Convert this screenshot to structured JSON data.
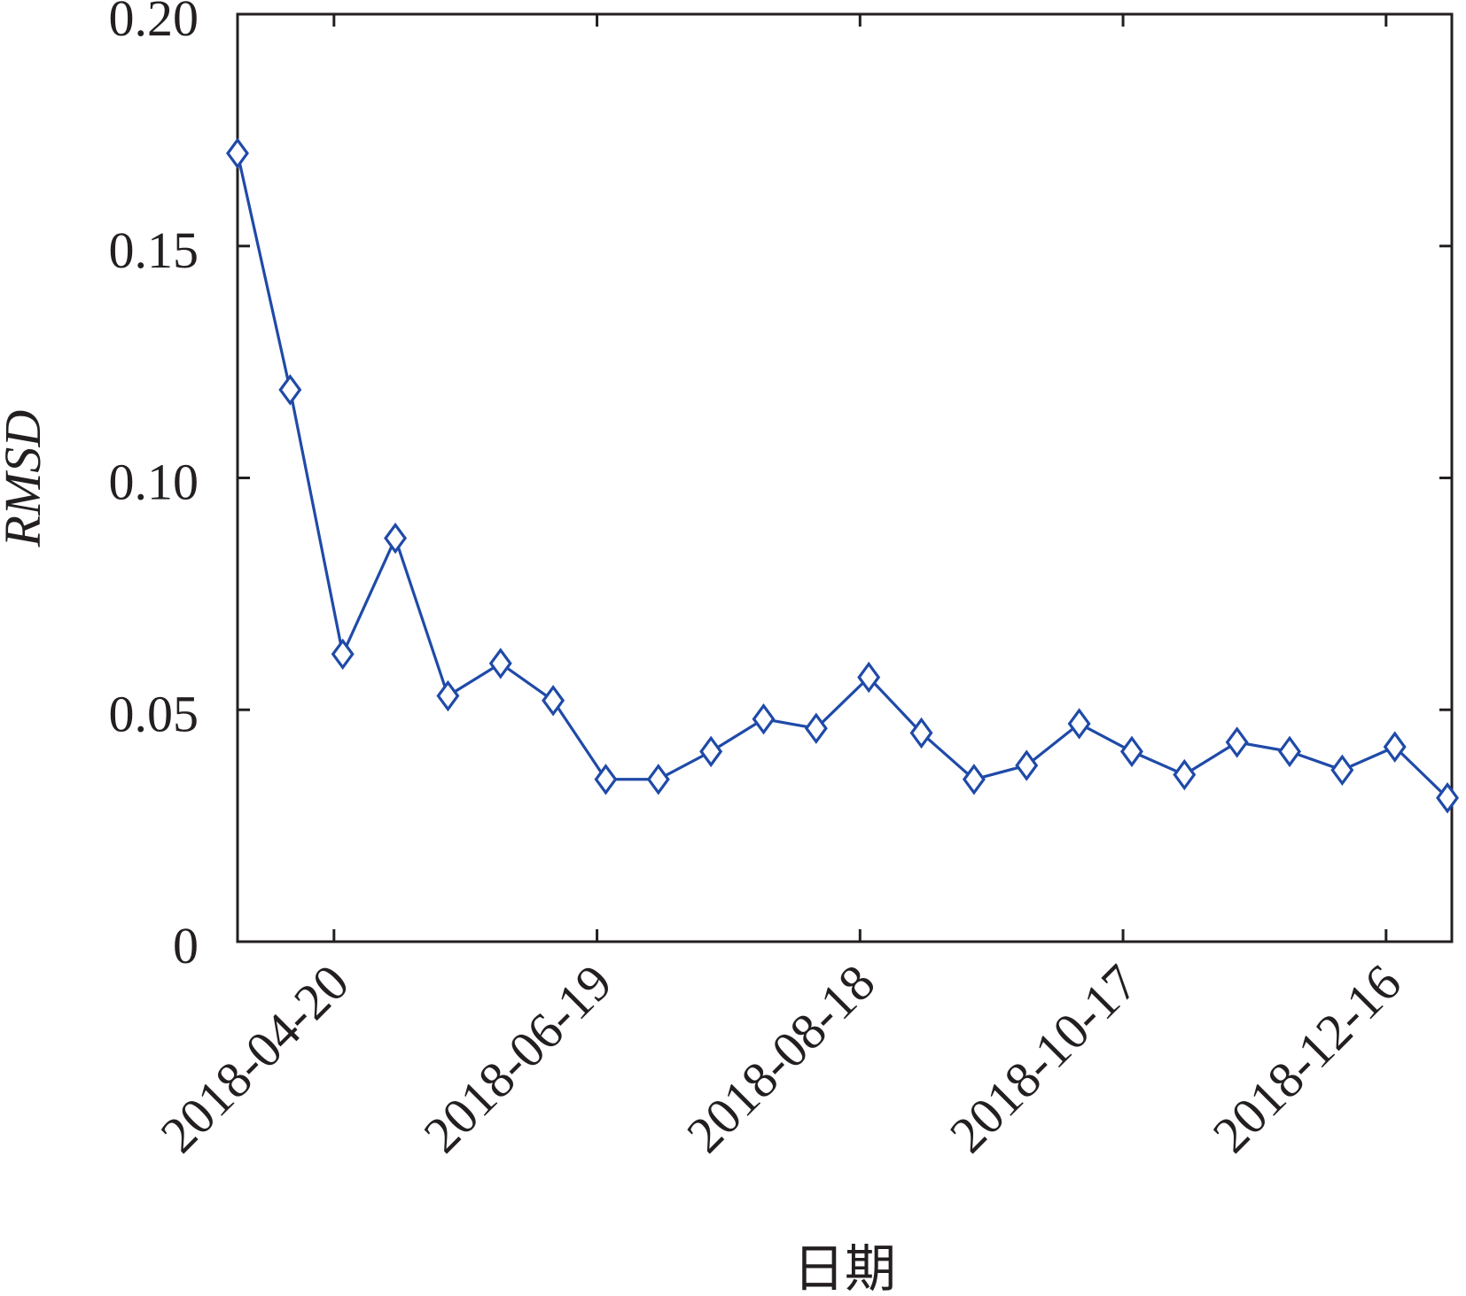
{
  "chart_data": {
    "type": "line",
    "title": "",
    "xlabel": "日期",
    "ylabel": "RMSD",
    "ylim": [
      0,
      0.2
    ],
    "xlim": [
      "2018-03-29",
      "2018-12-31"
    ],
    "yticks": [
      0,
      0.05,
      0.1,
      0.15,
      0.2
    ],
    "ytick_labels": [
      "0",
      "0.05",
      "0.10",
      "0.15",
      "0.20"
    ],
    "xticks": [
      "2018-04-20",
      "2018-06-19",
      "2018-08-18",
      "2018-10-17",
      "2018-12-16"
    ],
    "xtick_labels": [
      "2018-04-20",
      "2018-06-19",
      "2018-08-18",
      "2018-10-17",
      "2018-12-16"
    ],
    "grid": false,
    "legend": "none",
    "marker": "diamond",
    "color": "#1f4aa8",
    "series": [
      {
        "x": [
          "2018-03-29",
          "2018-04-10",
          "2018-04-22",
          "2018-05-04",
          "2018-05-16",
          "2018-05-28",
          "2018-06-09",
          "2018-06-21",
          "2018-07-03",
          "2018-07-15",
          "2018-07-27",
          "2018-08-08",
          "2018-08-20",
          "2018-09-01",
          "2018-09-13",
          "2018-09-25",
          "2018-10-07",
          "2018-10-19",
          "2018-10-31",
          "2018-11-12",
          "2018-11-24",
          "2018-12-06",
          "2018-12-18",
          "2018-12-30"
        ],
        "values": [
          0.17,
          0.119,
          0.062,
          0.087,
          0.053,
          0.06,
          0.052,
          0.035,
          0.035,
          0.041,
          0.048,
          0.046,
          0.057,
          0.045,
          0.035,
          0.038,
          0.047,
          0.041,
          0.036,
          0.043,
          0.041,
          0.037,
          0.042,
          0.031
        ]
      }
    ]
  }
}
